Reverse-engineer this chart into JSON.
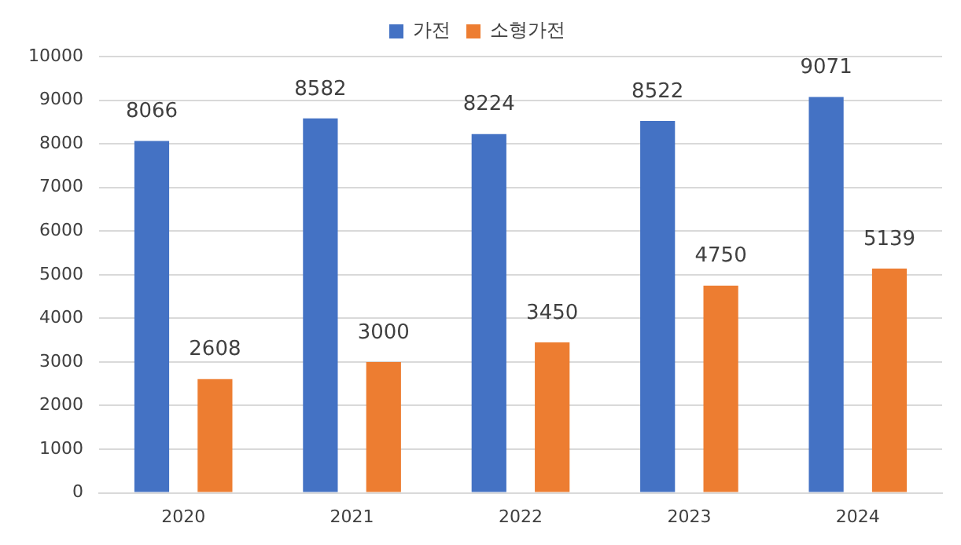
{
  "chart_data": {
    "type": "bar",
    "categories": [
      "2020",
      "2021",
      "2022",
      "2023",
      "2024"
    ],
    "series": [
      {
        "name": "가전",
        "color": "#4472c4",
        "values": [
          8066,
          8582,
          8224,
          8522,
          9071
        ]
      },
      {
        "name": "소형가전",
        "color": "#ed7d31",
        "values": [
          2608,
          3000,
          3450,
          4750,
          5139
        ]
      }
    ],
    "ylim": [
      0,
      10000
    ],
    "yticks": [
      0,
      1000,
      2000,
      3000,
      4000,
      5000,
      6000,
      7000,
      8000,
      9000,
      10000
    ],
    "grid": "y",
    "legend": "top",
    "data_labels": true
  }
}
